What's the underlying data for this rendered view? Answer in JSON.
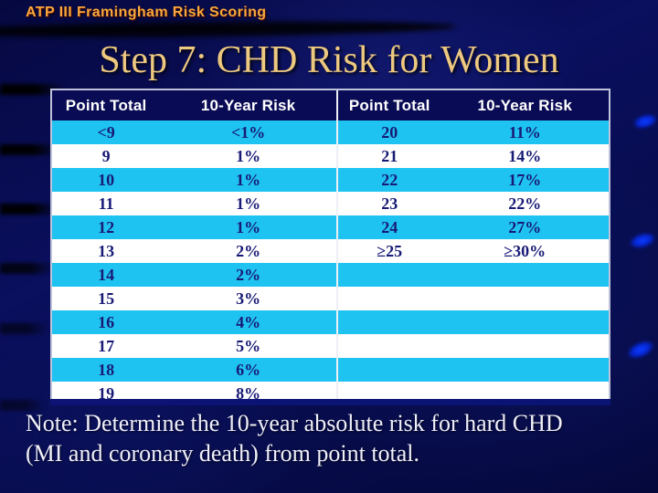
{
  "slide": {
    "kicker": "ATP III Framingham Risk Scoring",
    "title": "Step 7: CHD Risk for Women",
    "note_line1": "Note: Determine the 10-year absolute risk for hard CHD",
    "note_line2": "(MI and coronary death) from point total."
  },
  "table": {
    "left": {
      "headers": [
        "Point Total",
        "10-Year Risk"
      ],
      "rows": [
        [
          "<9",
          "<1%"
        ],
        [
          "9",
          "1%"
        ],
        [
          "10",
          "1%"
        ],
        [
          "11",
          "1%"
        ],
        [
          "12",
          "1%"
        ],
        [
          "13",
          "2%"
        ],
        [
          "14",
          "2%"
        ],
        [
          "15",
          "3%"
        ],
        [
          "16",
          "4%"
        ],
        [
          "17",
          "5%"
        ],
        [
          "18",
          "6%"
        ],
        [
          "19",
          "8%"
        ]
      ]
    },
    "right": {
      "headers": [
        "Point Total",
        "10-Year Risk"
      ],
      "rows": [
        [
          "20",
          "11%"
        ],
        [
          "21",
          "14%"
        ],
        [
          "22",
          "17%"
        ],
        [
          "23",
          "22%"
        ],
        [
          "24",
          "27%"
        ],
        [
          "≥25",
          "≥30%"
        ],
        [
          "",
          ""
        ],
        [
          "",
          ""
        ],
        [
          "",
          ""
        ],
        [
          "",
          ""
        ],
        [
          "",
          ""
        ],
        [
          "",
          ""
        ]
      ]
    }
  },
  "colors": {
    "cyan": "#1FC3F2",
    "header-bg": "#0A0B55",
    "gold": "#EDC87F",
    "orange": "#F6A93C",
    "navy-text": "#181A75",
    "note": "#EFEFF8"
  }
}
